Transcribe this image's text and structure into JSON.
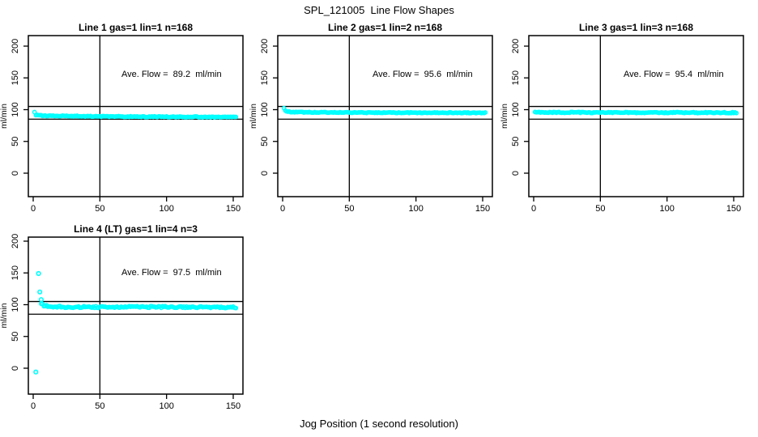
{
  "chart_data": {
    "type": "scatter",
    "title": "SPL_121005  Line Flow Shapes",
    "xlabel": "Jog Position (1 second resolution)",
    "ylabel": "ml/min",
    "xlim": [
      0,
      150
    ],
    "ylim": [
      0,
      200
    ],
    "x_ticks": [
      0,
      50,
      100,
      150
    ],
    "y_ticks": [
      0,
      50,
      100,
      150,
      200
    ],
    "grid": false,
    "point_color": "#00ffff",
    "axis_color": "#000000",
    "ref_lines_h": [
      85,
      105
    ],
    "ref_line_v": 50,
    "subplots": [
      {
        "title": "Line 1 gas=1 lin=1 n=168",
        "line": 1,
        "gas": 1,
        "lin": 1,
        "n": 168,
        "ave_flow": 89.2,
        "annotation": "Ave. Flow =  89.2  ml/min",
        "x_range": [
          1,
          152
        ],
        "profile": [
          [
            1,
            95.5
          ],
          [
            2,
            92.0
          ],
          [
            4,
            90.8
          ],
          [
            15,
            90.2
          ],
          [
            50,
            89.3
          ],
          [
            100,
            88.8
          ],
          [
            152,
            88.2
          ]
        ],
        "jitter": 0.7,
        "outliers": []
      },
      {
        "title": "Line 2 gas=1 lin=2 n=168",
        "line": 2,
        "gas": 1,
        "lin": 2,
        "n": 168,
        "ave_flow": 95.6,
        "annotation": "Ave. Flow =  95.6  ml/min",
        "x_range": [
          1,
          152
        ],
        "profile": [
          [
            1,
            103.0
          ],
          [
            2,
            98.5
          ],
          [
            4,
            96.8
          ],
          [
            10,
            96.0
          ],
          [
            50,
            95.4
          ],
          [
            152,
            95.0
          ]
        ],
        "jitter": 0.6,
        "outliers": []
      },
      {
        "title": "Line 3 gas=1 lin=3 n=168",
        "line": 3,
        "gas": 1,
        "lin": 3,
        "n": 168,
        "ave_flow": 95.4,
        "annotation": "Ave. Flow =  95.4  ml/min",
        "x_range": [
          1,
          152
        ],
        "profile": [
          [
            1,
            96.5
          ],
          [
            3,
            95.6
          ],
          [
            152,
            95.3
          ]
        ],
        "jitter": 0.8,
        "outliers": []
      },
      {
        "title": "Line 4 (LT) gas=1 lin=4 n=3",
        "line": 4,
        "gas": 1,
        "lin": 4,
        "n": 3,
        "ave_flow": 97.5,
        "annotation": "Ave. Flow =  97.5  ml/min",
        "x_range": [
          6,
          152
        ],
        "profile": [
          [
            6,
            102.0
          ],
          [
            8,
            98.5
          ],
          [
            12,
            97.2
          ],
          [
            30,
            96.3
          ],
          [
            60,
            96.2
          ],
          [
            100,
            96.4
          ],
          [
            152,
            95.6
          ]
        ],
        "jitter": 1.4,
        "outliers": [
          [
            2,
            -6
          ],
          [
            4,
            149
          ],
          [
            5,
            120
          ],
          [
            6,
            108
          ]
        ]
      }
    ]
  }
}
